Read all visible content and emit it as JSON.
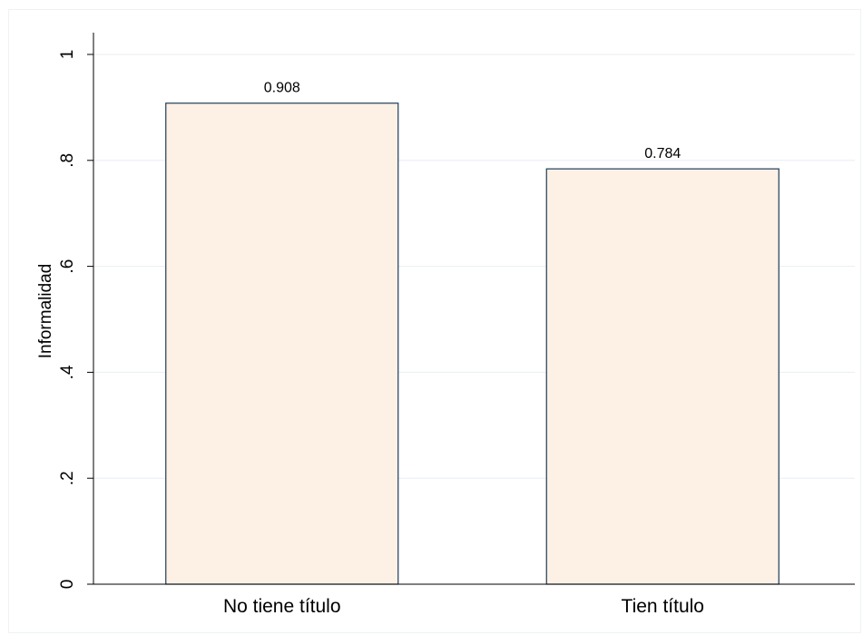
{
  "chart_data": {
    "type": "bar",
    "categories": [
      "No tiene título",
      "Tien título"
    ],
    "values": [
      0.908,
      0.784
    ],
    "data_labels": [
      "0.908",
      "0.784"
    ],
    "ylabel": "Informalidad",
    "ylim": [
      0,
      1
    ],
    "yticks": [
      0,
      0.2,
      0.4,
      0.6,
      0.8,
      1
    ],
    "ytick_labels": [
      "0",
      ".2",
      ".4",
      ".6",
      ".8",
      "1"
    ],
    "grid": true,
    "colors": {
      "bar_fill": "#fdf1e6",
      "bar_stroke": "#1f3b57",
      "grid": "#e8eef3",
      "axis": "#000000"
    }
  }
}
